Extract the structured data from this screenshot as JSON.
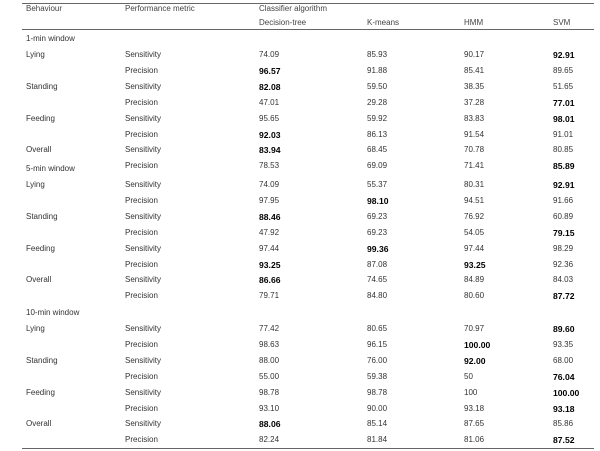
{
  "headers": {
    "behaviour": "Behaviour",
    "metric": "Performance metric",
    "classifier_group": "Classifier algorithm",
    "classifiers": [
      "Decision-tree",
      "K-means",
      "HMM",
      "SVM"
    ]
  },
  "sections": [
    {
      "window": "1-min window",
      "rows": [
        {
          "behaviour": "Lying",
          "metric": "Sensitivity",
          "values": [
            "74.09",
            "85.93",
            "90.17",
            "92.91"
          ],
          "bold": [
            false,
            false,
            false,
            true
          ]
        },
        {
          "behaviour": "",
          "metric": "Precision",
          "values": [
            "96.57",
            "91.88",
            "85.41",
            "89.65"
          ],
          "bold": [
            true,
            false,
            false,
            false
          ]
        },
        {
          "behaviour": "Standing",
          "metric": "Sensitivity",
          "values": [
            "82.08",
            "59.50",
            "38.35",
            "51.65"
          ],
          "bold": [
            true,
            false,
            false,
            false
          ]
        },
        {
          "behaviour": "",
          "metric": "Precision",
          "values": [
            "47.01",
            "29.28",
            "37.28",
            "77.01"
          ],
          "bold": [
            false,
            false,
            false,
            true
          ]
        },
        {
          "behaviour": "Feeding",
          "metric": "Sensitivity",
          "values": [
            "95.65",
            "59.92",
            "83.83",
            "98.01"
          ],
          "bold": [
            false,
            false,
            false,
            true
          ]
        },
        {
          "behaviour": "",
          "metric": "Precision",
          "values": [
            "92.03",
            "86.13",
            "91.54",
            "91.01"
          ],
          "bold": [
            true,
            false,
            false,
            false
          ]
        },
        {
          "behaviour": "Overall",
          "metric": "Sensitivity",
          "values": [
            "83.94",
            "68.45",
            "70.78",
            "80.85"
          ],
          "bold": [
            true,
            false,
            false,
            false
          ]
        },
        {
          "behaviour": "",
          "metric": "Precision",
          "values": [
            "78.53",
            "69.09",
            "71.41",
            "85.89"
          ],
          "bold": [
            false,
            false,
            false,
            true
          ]
        }
      ]
    },
    {
      "window": "5-min window",
      "rows": [
        {
          "behaviour": "Lying",
          "metric": "Sensitivity",
          "values": [
            "74.09",
            "55.37",
            "80.31",
            "92.91"
          ],
          "bold": [
            false,
            false,
            false,
            true
          ]
        },
        {
          "behaviour": "",
          "metric": "Precision",
          "values": [
            "97.95",
            "98.10",
            "94.51",
            "91.66"
          ],
          "bold": [
            false,
            true,
            false,
            false
          ]
        },
        {
          "behaviour": "Standing",
          "metric": "Sensitivity",
          "values": [
            "88.46",
            "69.23",
            "76.92",
            "60.89"
          ],
          "bold": [
            true,
            false,
            false,
            false
          ]
        },
        {
          "behaviour": "",
          "metric": "Precision",
          "values": [
            "47.92",
            "69.23",
            "54.05",
            "79.15"
          ],
          "bold": [
            false,
            false,
            false,
            true
          ]
        },
        {
          "behaviour": "Feeding",
          "metric": "Sensitivity",
          "values": [
            "97.44",
            "99.36",
            "97.44",
            "98.29"
          ],
          "bold": [
            false,
            true,
            false,
            false
          ]
        },
        {
          "behaviour": "",
          "metric": "Precision",
          "values": [
            "93.25",
            "87.08",
            "93.25",
            "92.36"
          ],
          "bold": [
            true,
            false,
            true,
            false
          ]
        },
        {
          "behaviour": "Overall",
          "metric": "Sensitivity",
          "values": [
            "86.66",
            "74.65",
            "84.89",
            "84.03"
          ],
          "bold": [
            true,
            false,
            false,
            false
          ]
        },
        {
          "behaviour": "",
          "metric": "Precision",
          "values": [
            "79.71",
            "84.80",
            "80.60",
            "87.72"
          ],
          "bold": [
            false,
            false,
            false,
            true
          ]
        }
      ]
    },
    {
      "window": "10-min window",
      "rows": [
        {
          "behaviour": "Lying",
          "metric": "Sensitivity",
          "values": [
            "77.42",
            "80.65",
            "70.97",
            "89.60"
          ],
          "bold": [
            false,
            false,
            false,
            true
          ]
        },
        {
          "behaviour": "",
          "metric": "Precision",
          "values": [
            "98.63",
            "96.15",
            "100.00",
            "93.35"
          ],
          "bold": [
            false,
            false,
            true,
            false
          ]
        },
        {
          "behaviour": "Standing",
          "metric": "Sensitivity",
          "values": [
            "88.00",
            "76.00",
            "92.00",
            "68.00"
          ],
          "bold": [
            false,
            false,
            true,
            false
          ]
        },
        {
          "behaviour": "",
          "metric": "Precision",
          "values": [
            "55.00",
            "59.38",
            "50",
            "76.04"
          ],
          "bold": [
            false,
            false,
            false,
            true
          ]
        },
        {
          "behaviour": "Feeding",
          "metric": "Sensitivity",
          "values": [
            "98.78",
            "98.78",
            "100",
            "100.00"
          ],
          "bold": [
            false,
            false,
            false,
            true
          ]
        },
        {
          "behaviour": "",
          "metric": "Precision",
          "values": [
            "93.10",
            "90.00",
            "93.18",
            "93.18"
          ],
          "bold": [
            false,
            false,
            false,
            true
          ]
        },
        {
          "behaviour": "Overall",
          "metric": "Sensitivity",
          "values": [
            "88.06",
            "85.14",
            "87.65",
            "85.86"
          ],
          "bold": [
            true,
            false,
            false,
            false
          ]
        },
        {
          "behaviour": "",
          "metric": "Precision",
          "values": [
            "82.24",
            "81.84",
            "81.06",
            "87.52"
          ],
          "bold": [
            false,
            false,
            false,
            true
          ]
        }
      ]
    }
  ]
}
